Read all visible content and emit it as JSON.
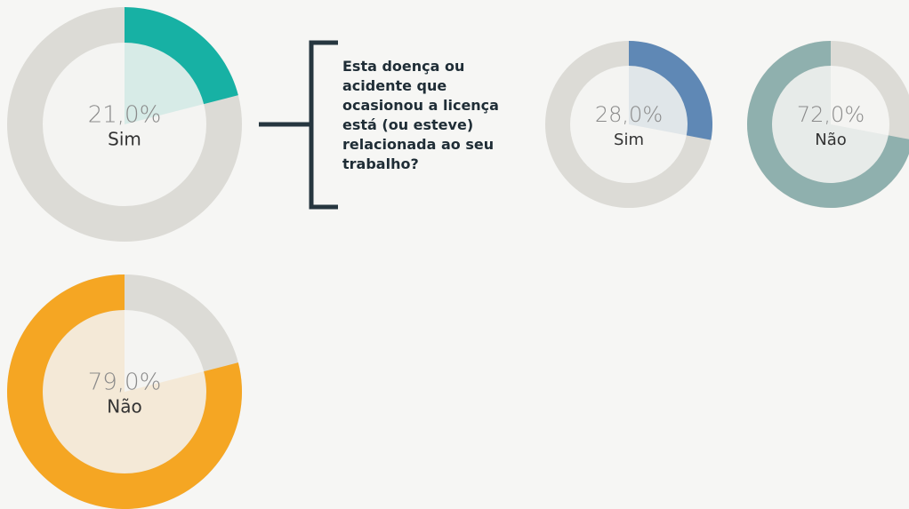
{
  "chart_data": [
    {
      "type": "donut",
      "value": 21,
      "value_labels": "21,0%",
      "label": "Sim",
      "color": "#17b1a4",
      "align": "start"
    },
    {
      "type": "donut",
      "value": 79,
      "value_labels": "79,0%",
      "label": "Não",
      "color": "#f5a623",
      "align": "end"
    },
    {
      "type": "donut",
      "value": 28,
      "value_labels": "28,0%",
      "label": "Sim",
      "color": "#5f88b5",
      "align": "start"
    },
    {
      "type": "donut",
      "value": 72,
      "value_labels": "72,0%",
      "label": "Não",
      "color": "#8fb0ae",
      "align": "end"
    }
  ],
  "question": "Esta doença ou acidente que ocasionou a licença está (ou esteve) relacionada ao seu trabalho?"
}
